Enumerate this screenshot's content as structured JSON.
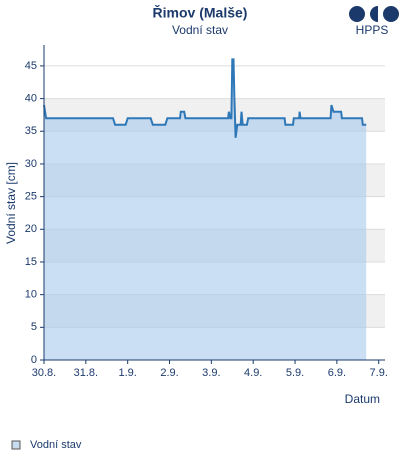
{
  "chart_data": {
    "type": "area",
    "title": "Řimov (Malše)",
    "subtitle": "Vodní stav",
    "logo": "HPPS",
    "xlabel": "Datum",
    "ylabel": "Vodní stav [cm]",
    "x": [
      0,
      0.05,
      1.65,
      1.7,
      1.95,
      2.0,
      2.55,
      2.6,
      2.9,
      2.95,
      3.25,
      3.27,
      3.35,
      3.38,
      4.4,
      4.42,
      4.45,
      4.48,
      4.5,
      4.53,
      4.55,
      4.58,
      4.62,
      4.7,
      4.72,
      4.75,
      4.85,
      4.88,
      5.75,
      5.77,
      5.95,
      5.97,
      6.1,
      6.11,
      6.13,
      6.85,
      6.87,
      6.92,
      7.1,
      7.12,
      7.6,
      7.62,
      7.7
    ],
    "series": [
      {
        "name": "Vodní stav",
        "color": "#2f78b8",
        "values": [
          39,
          37,
          37,
          36,
          36,
          37,
          37,
          36,
          36,
          37,
          37,
          38,
          38,
          37,
          37,
          38,
          37,
          37,
          46,
          46,
          40,
          34,
          36,
          36,
          38,
          36,
          36,
          37,
          37,
          36,
          36,
          37,
          37,
          38,
          37,
          37,
          39,
          38,
          38,
          37,
          37,
          36,
          36
        ]
      }
    ],
    "xlim": [
      0,
      8.15
    ],
    "xticks": [
      {
        "value": 0,
        "label": "30.8."
      },
      {
        "value": 1,
        "label": "31.8."
      },
      {
        "value": 2,
        "label": "1.9."
      },
      {
        "value": 3,
        "label": "2.9."
      },
      {
        "value": 4,
        "label": "3.9."
      },
      {
        "value": 5,
        "label": "4.9."
      },
      {
        "value": 6,
        "label": "5.9."
      },
      {
        "value": 7,
        "label": "6.9."
      },
      {
        "value": 8,
        "label": "7.9."
      }
    ],
    "ylim": [
      0,
      48.2
    ],
    "yticks": [
      0,
      5,
      10,
      15,
      20,
      25,
      30,
      35,
      40,
      45
    ],
    "grid": true
  }
}
